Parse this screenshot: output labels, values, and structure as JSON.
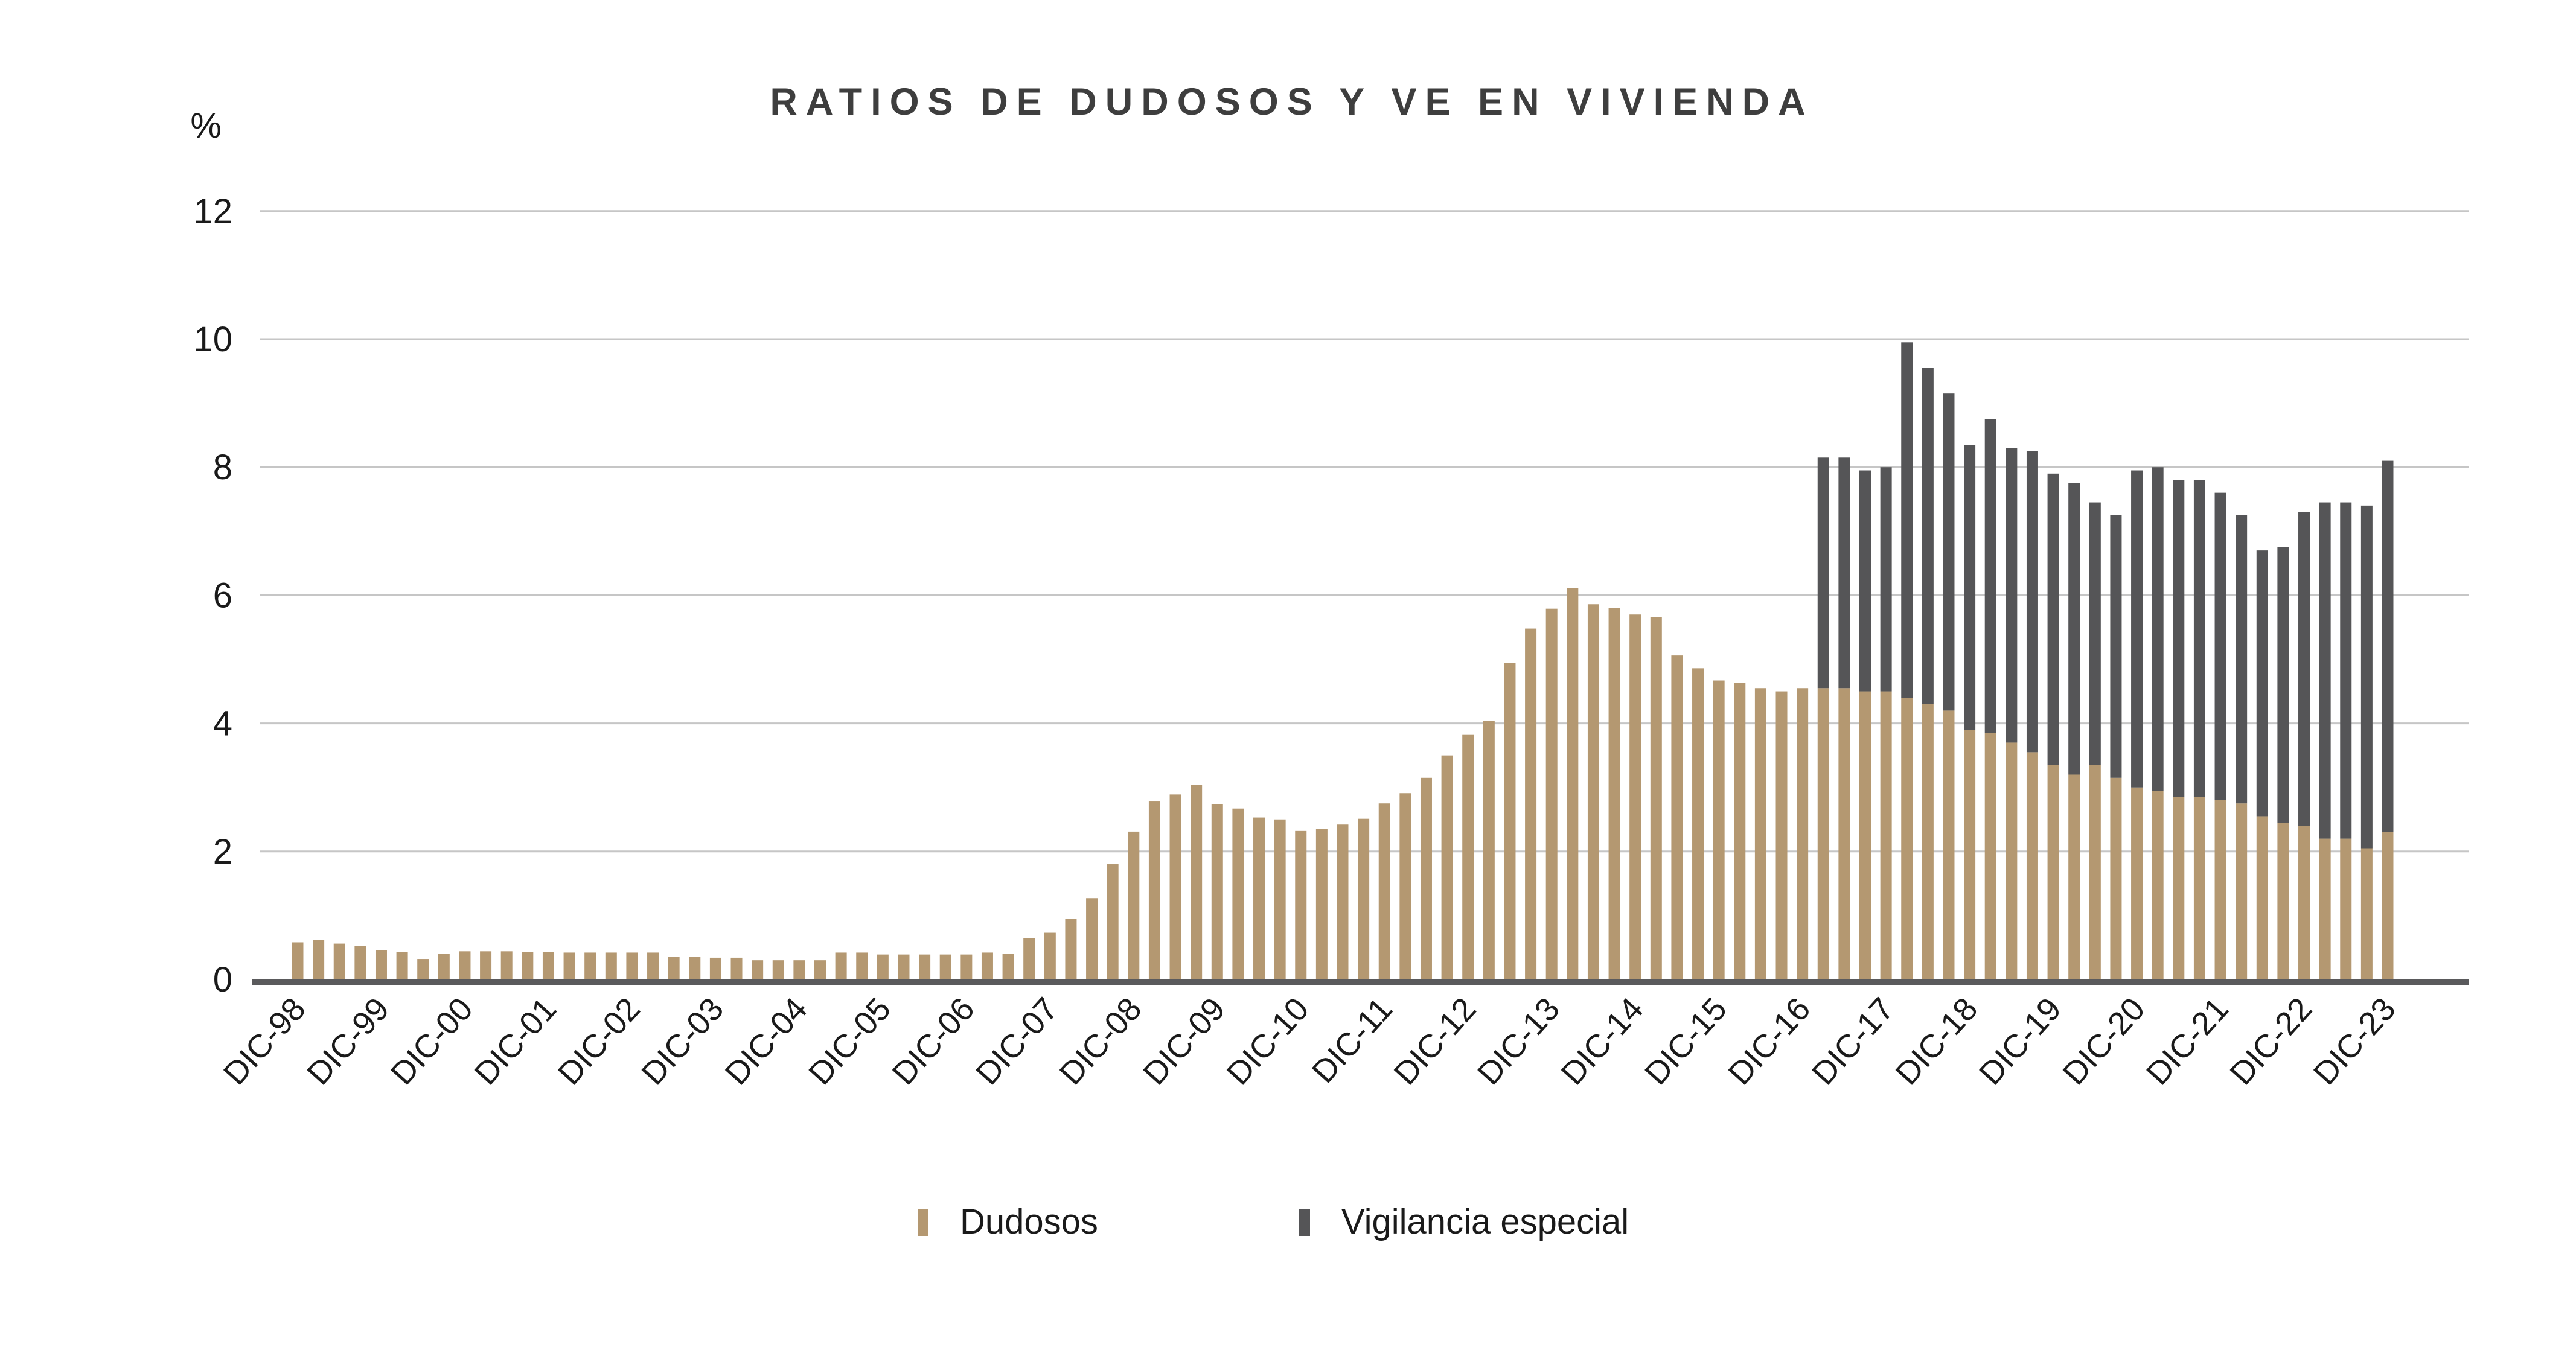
{
  "title": "RATIOS DE DUDOSOS Y VE EN VIVIENDA",
  "y_axis": {
    "unit_label": "%",
    "ticks": [
      0,
      2,
      4,
      6,
      8,
      10,
      12
    ]
  },
  "legend": [
    {
      "label": "Dudosos",
      "color": "#B49871"
    },
    {
      "label": "Vigilancia especial",
      "color": "#555557"
    }
  ],
  "colors": {
    "dudosos": "#B49871",
    "vigilancia_especial": "#555557",
    "gridline": "#C6C6C6",
    "axis_line": "#5A5A5C",
    "title_text": "#3E3E3E",
    "tick_text": "#1A1A1A",
    "background": "#FFFFFF"
  },
  "chart_data": {
    "type": "bar",
    "stacked": true,
    "title": "RATIOS DE DUDOSOS Y VE EN VIVIENDA",
    "ylabel": "%",
    "xlabel": "",
    "ylim": [
      0,
      12
    ],
    "grid": true,
    "legend_position": "bottom",
    "x_tick_labels": [
      "DIC-98",
      "DIC-99",
      "DIC-00",
      "DIC-01",
      "DIC-02",
      "DIC-03",
      "DIC-04",
      "DIC-05",
      "DIC-06",
      "DIC-07",
      "DIC-08",
      "DIC-09",
      "DIC-10",
      "DIC-11",
      "DIC-12",
      "DIC-13",
      "DIC-14",
      "DIC-15",
      "DIC-16",
      "DIC-17",
      "DIC-18",
      "DIC-19",
      "DIC-20",
      "DIC-21",
      "DIC-22",
      "DIC-23"
    ],
    "x_tick_every": 4,
    "x": [
      "DIC-98",
      "MAR-99",
      "JUN-99",
      "SEP-99",
      "DIC-99",
      "MAR-00",
      "JUN-00",
      "SEP-00",
      "DIC-00",
      "MAR-01",
      "JUN-01",
      "SEP-01",
      "DIC-01",
      "MAR-02",
      "JUN-02",
      "SEP-02",
      "DIC-02",
      "MAR-03",
      "JUN-03",
      "SEP-03",
      "DIC-03",
      "MAR-04",
      "JUN-04",
      "SEP-04",
      "DIC-04",
      "MAR-05",
      "JUN-05",
      "SEP-05",
      "DIC-05",
      "MAR-06",
      "JUN-06",
      "SEP-06",
      "DIC-06",
      "MAR-07",
      "JUN-07",
      "SEP-07",
      "DIC-07",
      "MAR-08",
      "JUN-08",
      "SEP-08",
      "DIC-08",
      "MAR-09",
      "JUN-09",
      "SEP-09",
      "DIC-09",
      "MAR-10",
      "JUN-10",
      "SEP-10",
      "DIC-10",
      "MAR-11",
      "JUN-11",
      "SEP-11",
      "DIC-11",
      "MAR-12",
      "JUN-12",
      "SEP-12",
      "DIC-12",
      "MAR-13",
      "JUN-13",
      "SEP-13",
      "DIC-13",
      "MAR-14",
      "JUN-14",
      "SEP-14",
      "DIC-14",
      "MAR-15",
      "JUN-15",
      "SEP-15",
      "DIC-15",
      "MAR-16",
      "JUN-16",
      "SEP-16",
      "DIC-16",
      "MAR-17",
      "JUN-17",
      "SEP-17",
      "DIC-17",
      "MAR-18",
      "JUN-18",
      "SEP-18",
      "DIC-18",
      "MAR-19",
      "JUN-19",
      "SEP-19",
      "DIC-19",
      "MAR-20",
      "JUN-20",
      "SEP-20",
      "DIC-20",
      "MAR-21",
      "JUN-21",
      "SEP-21",
      "DIC-21",
      "MAR-22",
      "JUN-22",
      "SEP-22",
      "DIC-22",
      "MAR-23",
      "JUN-23",
      "SEP-23",
      "DIC-23"
    ],
    "series": [
      {
        "name": "Dudosos",
        "color": "#B49871",
        "values": [
          0.58,
          0.62,
          0.56,
          0.52,
          0.46,
          0.43,
          0.32,
          0.4,
          0.44,
          0.44,
          0.44,
          0.43,
          0.43,
          0.42,
          0.42,
          0.42,
          0.42,
          0.42,
          0.35,
          0.35,
          0.34,
          0.34,
          0.3,
          0.3,
          0.3,
          0.3,
          0.42,
          0.42,
          0.39,
          0.39,
          0.39,
          0.39,
          0.39,
          0.42,
          0.4,
          0.65,
          0.73,
          0.95,
          1.27,
          1.8,
          2.31,
          2.78,
          2.89,
          3.04,
          2.74,
          2.67,
          2.53,
          2.5,
          2.32,
          2.35,
          2.42,
          2.51,
          2.75,
          2.91,
          3.15,
          3.5,
          3.82,
          4.04,
          4.94,
          5.48,
          5.79,
          6.11,
          5.86,
          5.8,
          5.7,
          5.66,
          5.06,
          4.86,
          4.67,
          4.63,
          4.55,
          4.5,
          4.55,
          4.55,
          4.55,
          4.5,
          4.5,
          4.4,
          4.3,
          4.2,
          3.9,
          3.85,
          3.7,
          3.55,
          3.35,
          3.2,
          3.35,
          3.15,
          3.0,
          2.95,
          2.85,
          2.85,
          2.8,
          2.75,
          2.55,
          2.45,
          2.4,
          2.2,
          2.2,
          2.05,
          2.3
        ]
      },
      {
        "name": "Vigilancia especial",
        "color": "#555557",
        "values": [
          null,
          null,
          null,
          null,
          null,
          null,
          null,
          null,
          null,
          null,
          null,
          null,
          null,
          null,
          null,
          null,
          null,
          null,
          null,
          null,
          null,
          null,
          null,
          null,
          null,
          null,
          null,
          null,
          null,
          null,
          null,
          null,
          null,
          null,
          null,
          null,
          null,
          null,
          null,
          null,
          null,
          null,
          null,
          null,
          null,
          null,
          null,
          null,
          null,
          null,
          null,
          null,
          null,
          null,
          null,
          null,
          null,
          null,
          null,
          null,
          null,
          null,
          null,
          null,
          null,
          null,
          null,
          null,
          null,
          null,
          null,
          null,
          null,
          3.6,
          3.6,
          3.45,
          3.5,
          5.55,
          5.25,
          4.95,
          4.45,
          4.9,
          4.6,
          4.7,
          4.55,
          4.55,
          4.1,
          4.1,
          4.95,
          5.05,
          4.95,
          4.95,
          4.8,
          4.5,
          4.15,
          4.3,
          4.9,
          5.25,
          5.25,
          5.35,
          5.8
        ]
      }
    ]
  }
}
